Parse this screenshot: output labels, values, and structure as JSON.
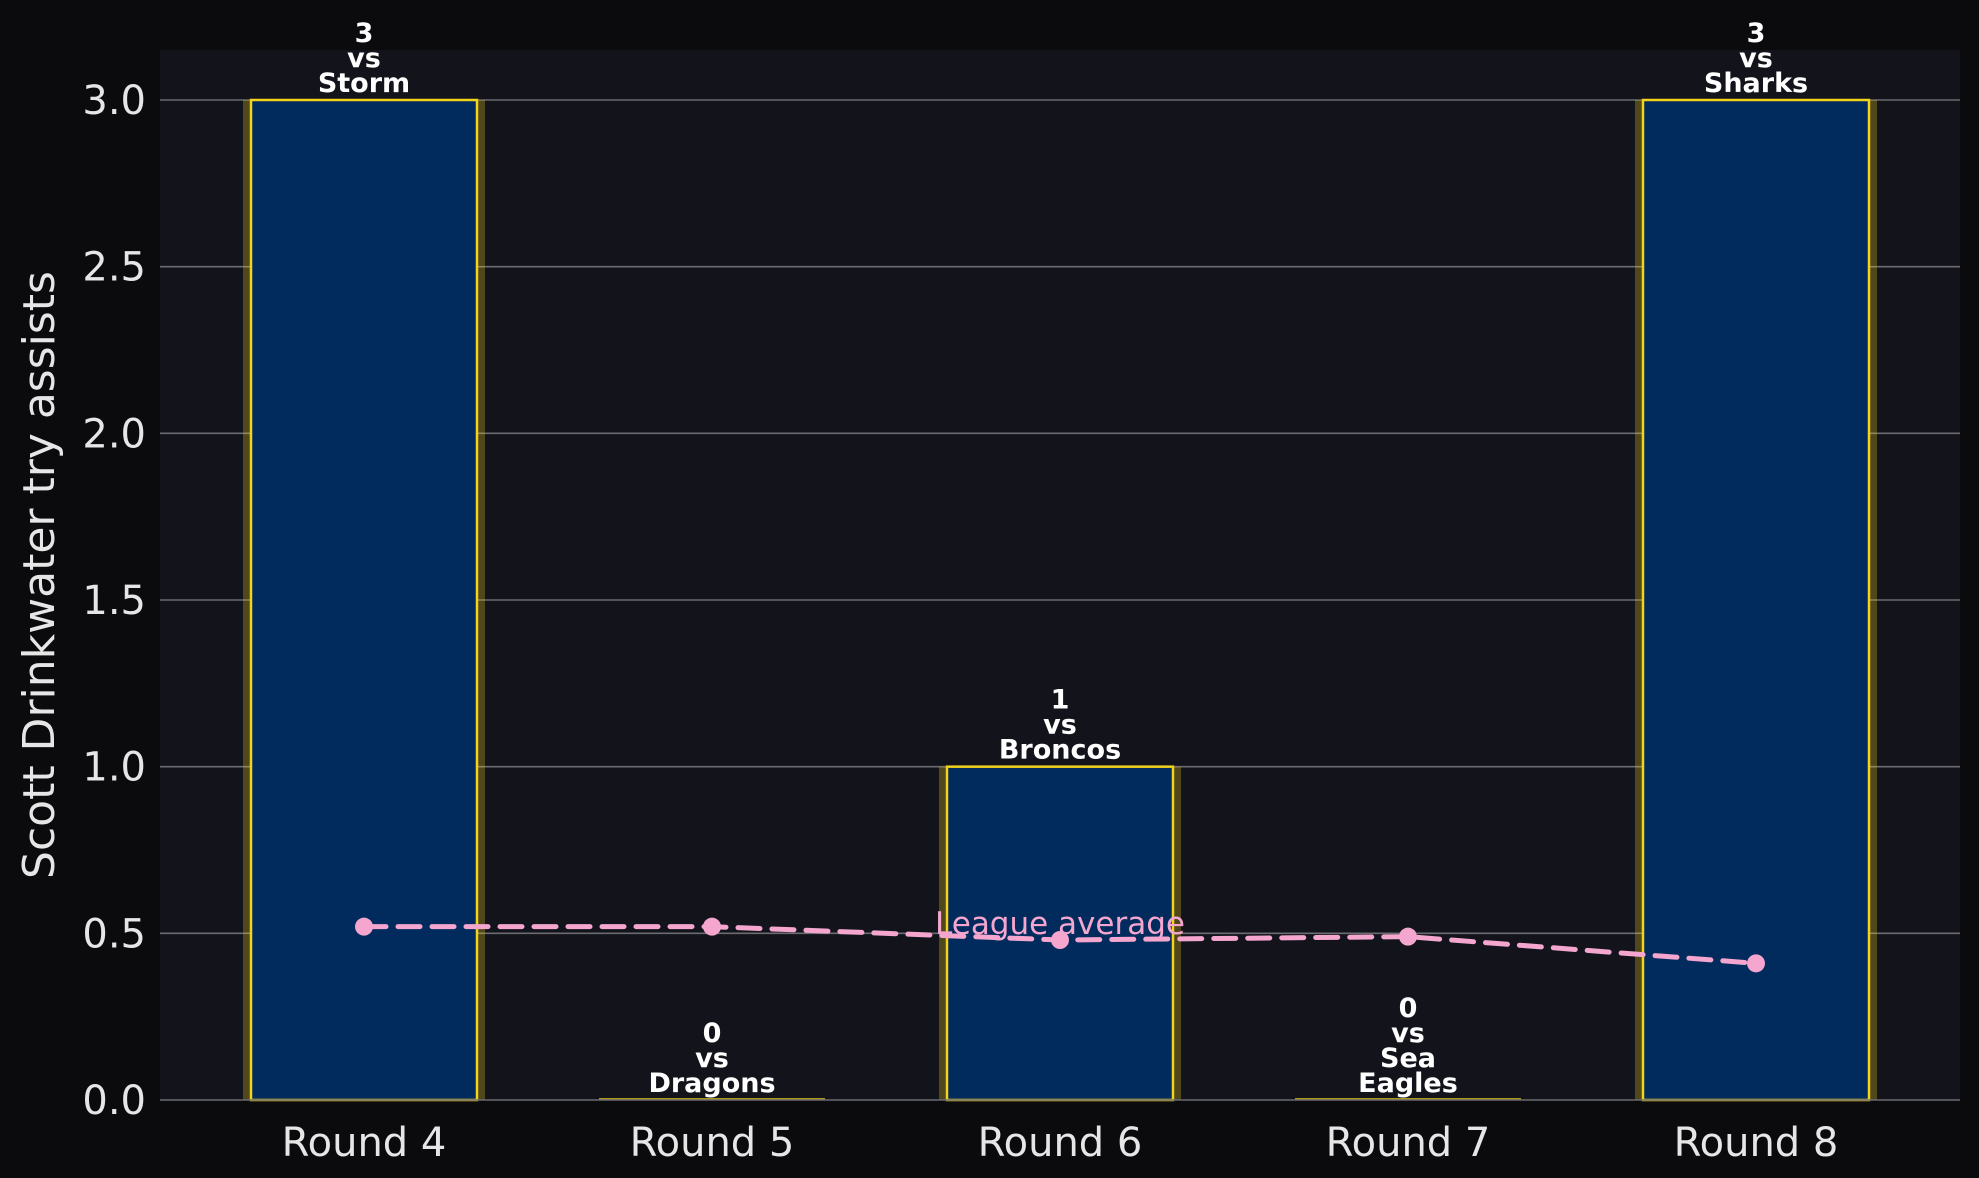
{
  "chart_data": {
    "type": "bar",
    "categories": [
      "Round 4",
      "Round 5",
      "Round 6",
      "Round 7",
      "Round 8"
    ],
    "ylabel": "Scott Drinkwater try assists",
    "xlabel": "",
    "title": "",
    "ylim": [
      0,
      3.15
    ],
    "yticks": [
      "0.0",
      "0.5",
      "1.0",
      "1.5",
      "2.0",
      "2.5",
      "3.0"
    ],
    "grid": "horizontal",
    "series": [
      {
        "values": [
          3,
          0,
          1,
          0,
          3
        ],
        "color": "#002b5c",
        "edge_color": "#f2d21b"
      },
      {
        "name": "League average",
        "type": "line",
        "style": "dashed",
        "color": "#f4a6cf",
        "values": [
          0.52,
          0.52,
          0.48,
          0.49,
          0.41
        ]
      }
    ],
    "bar_labels": [
      [
        "3",
        "vs",
        "Storm"
      ],
      [
        "0",
        "vs",
        "Dragons"
      ],
      [
        "1",
        "vs",
        "Broncos"
      ],
      [
        "0",
        "vs",
        "Sea",
        "Eagles"
      ],
      [
        "3",
        "vs",
        "Sharks"
      ]
    ],
    "annotations": [
      {
        "text": "League average",
        "series": "League average",
        "at_category": "Round 6"
      }
    ],
    "colors": {
      "page_background": "#0b0b0e",
      "plot_background": "#13141b",
      "grid": "#6b6b70",
      "text": "#e6e6e6"
    }
  }
}
